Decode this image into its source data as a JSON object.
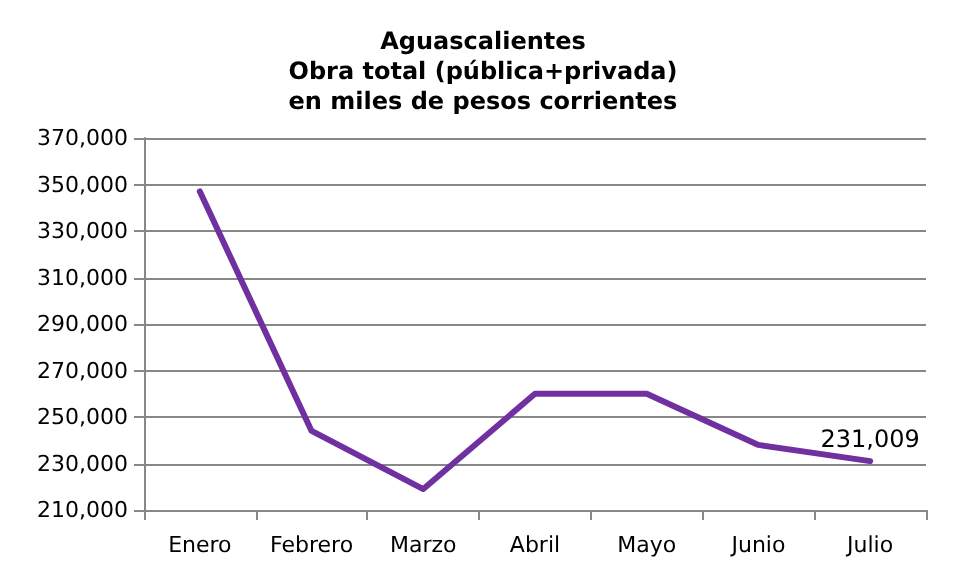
{
  "chart_data": {
    "type": "line",
    "title": "Aguascalientes\nObra total (pública+privada)\nen miles de pesos corrientes",
    "categories": [
      "Enero",
      "Febrero",
      "Marzo",
      "Abril",
      "Mayo",
      "Junio",
      "Julio"
    ],
    "series": [
      {
        "color": "#7030a0",
        "values": [
          347000,
          244000,
          219000,
          260000,
          260000,
          238000,
          231009
        ],
        "value_labels": [
          null,
          null,
          null,
          null,
          null,
          null,
          "231,009"
        ]
      }
    ],
    "ylim": [
      210000,
      370000
    ],
    "yticks": [
      {
        "value": 210000,
        "label": "210,000"
      },
      {
        "value": 230000,
        "label": "230,000"
      },
      {
        "value": 250000,
        "label": "250,000"
      },
      {
        "value": 270000,
        "label": "270,000"
      },
      {
        "value": 290000,
        "label": "290,000"
      },
      {
        "value": 310000,
        "label": "310,000"
      },
      {
        "value": 330000,
        "label": "330,000"
      },
      {
        "value": 350000,
        "label": "350,000"
      },
      {
        "value": 370000,
        "label": "370,000"
      }
    ],
    "grid": "y",
    "marker": "none",
    "line_style": "solid"
  }
}
